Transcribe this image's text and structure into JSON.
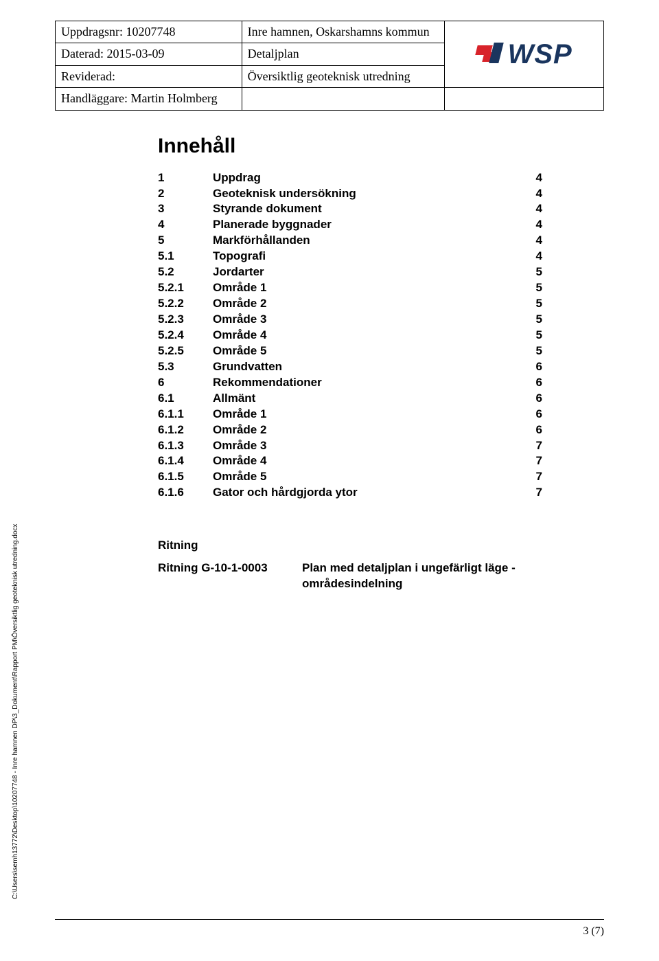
{
  "header": {
    "row1_left": "Uppdragsnr: 10207748",
    "row1_mid": "Inre hamnen, Oskarshamns kommun",
    "row2_left": "Daterad: 2015-03-09",
    "row2_mid": "Detaljplan",
    "row3_left": "Reviderad:",
    "row3_mid": "Översiktlig geoteknisk utredning",
    "row4_left": "Handläggare: Martin Holmberg",
    "logo_text": "WSP"
  },
  "toc": {
    "title": "Innehåll",
    "rows": [
      {
        "num": "1",
        "label": "Uppdrag",
        "page": "4"
      },
      {
        "num": "2",
        "label": "Geoteknisk undersökning",
        "page": "4"
      },
      {
        "num": "3",
        "label": "Styrande dokument",
        "page": "4"
      },
      {
        "num": "4",
        "label": "Planerade byggnader",
        "page": "4"
      },
      {
        "num": "5",
        "label": "Markförhållanden",
        "page": "4"
      },
      {
        "num": "5.1",
        "label": "Topografi",
        "page": "4"
      },
      {
        "num": "5.2",
        "label": "Jordarter",
        "page": "5"
      },
      {
        "num": "5.2.1",
        "label": "Område 1",
        "page": "5"
      },
      {
        "num": "5.2.2",
        "label": "Område 2",
        "page": "5"
      },
      {
        "num": "5.2.3",
        "label": "Område 3",
        "page": "5"
      },
      {
        "num": "5.2.4",
        "label": "Område 4",
        "page": "5"
      },
      {
        "num": "5.2.5",
        "label": "Område 5",
        "page": "5"
      },
      {
        "num": "5.3",
        "label": "Grundvatten",
        "page": "6"
      },
      {
        "num": "6",
        "label": "Rekommendationer",
        "page": "6"
      },
      {
        "num": "6.1",
        "label": "Allmänt",
        "page": "6"
      },
      {
        "num": "6.1.1",
        "label": "Område 1",
        "page": "6"
      },
      {
        "num": "6.1.2",
        "label": "Område 2",
        "page": "6"
      },
      {
        "num": "6.1.3",
        "label": "Område 3",
        "page": "7"
      },
      {
        "num": "6.1.4",
        "label": "Område 4",
        "page": "7"
      },
      {
        "num": "6.1.5",
        "label": "Område 5",
        "page": "7"
      },
      {
        "num": "6.1.6",
        "label": "Gator och hårdgjorda ytor",
        "page": "7"
      }
    ]
  },
  "ritning": {
    "heading": "Ritning",
    "id": "Ritning G-10-1-0003",
    "desc": "Plan med detaljplan i ungefärligt läge - områdesindelning"
  },
  "side_text": "C:\\Users\\semh13772\\Desktop\\10207748 - Inre hamnen DP\\3_Dokument\\Rapport PM\\Översiktlig geoteknisk utredning.docx",
  "page_number": "3 (7)",
  "colors": {
    "text": "#000000",
    "logo_red": "#d8232a",
    "logo_blue": "#1a355e",
    "background": "#ffffff"
  }
}
